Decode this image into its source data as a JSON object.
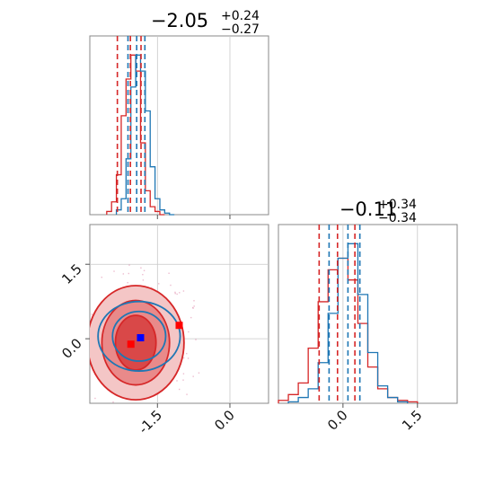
{
  "chart_data": {
    "type": "corner",
    "series": [
      {
        "name": "",
        "color": "#d62728"
      },
      {
        "name": "",
        "color": "#1f77b4"
      }
    ],
    "panels": {
      "hist_p1": {
        "type": "histogram",
        "title": {
          "value": "−2.05",
          "sup": "+0.24",
          "sub": "−0.27"
        },
        "xlim": [
          -2.9,
          0.8
        ],
        "grid_x": [
          -1.5,
          0.0
        ],
        "quantiles": {
          "red": [
            -2.33,
            -2.06,
            -1.84
          ],
          "blue": [
            -2.11,
            -1.93,
            -1.76
          ]
        },
        "red_centers": [
          -2.5,
          -2.4,
          -2.3,
          -2.2,
          -2.1,
          -2.0,
          -1.9,
          -1.8,
          -1.7,
          -1.6,
          -1.5,
          -1.4
        ],
        "red_counts": [
          2,
          8,
          25,
          62,
          85,
          100,
          90,
          45,
          15,
          5,
          2,
          0
        ],
        "blue_centers": [
          -2.3,
          -2.2,
          -2.1,
          -2.0,
          -1.9,
          -1.8,
          -1.7,
          -1.6,
          -1.5,
          -1.4,
          -1.3,
          -1.2
        ],
        "blue_counts": [
          3,
          10,
          35,
          80,
          100,
          90,
          65,
          30,
          10,
          3,
          1,
          0
        ]
      },
      "hist_p2": {
        "type": "histogram",
        "title": {
          "value": "−0.11",
          "sup": "+0.34",
          "sub": "−0.34"
        },
        "xlim": [
          -1.3,
          2.3
        ],
        "grid_x": [
          0.0,
          1.5
        ],
        "tick_labels": [
          "0.0",
          "1.5"
        ],
        "quantiles": {
          "red": [
            -0.48,
            -0.11,
            0.24
          ],
          "blue": [
            -0.28,
            0.1,
            0.34
          ]
        },
        "red_centers": [
          -1.2,
          -1.0,
          -0.8,
          -0.6,
          -0.4,
          -0.2,
          0.0,
          0.2,
          0.4,
          0.6,
          0.8,
          1.0,
          1.2,
          1.4
        ],
        "red_counts": [
          2,
          6,
          14,
          38,
          70,
          92,
          100,
          85,
          55,
          25,
          10,
          4,
          2,
          1
        ],
        "blue_centers": [
          -1.0,
          -0.8,
          -0.6,
          -0.4,
          -0.2,
          0.0,
          0.2,
          0.4,
          0.6,
          0.8,
          1.0,
          1.2
        ],
        "blue_counts": [
          1,
          4,
          10,
          28,
          62,
          100,
          110,
          75,
          35,
          12,
          4,
          1
        ]
      },
      "scatter": {
        "type": "contour",
        "xlim": [
          -2.9,
          0.8
        ],
        "ylim": [
          -1.3,
          2.3
        ],
        "grid_x": [
          -1.5,
          0.0
        ],
        "grid_y": [
          0.0,
          1.5
        ],
        "x_tick_labels": [
          "-1.5",
          "0.0"
        ],
        "y_tick_labels": [
          "0.0",
          "1.5"
        ],
        "red_levels": [
          {
            "cx": -1.95,
            "cy": -0.08,
            "rx": 1.0,
            "ry": 1.15
          },
          {
            "cx": -1.95,
            "cy": -0.08,
            "rx": 0.7,
            "ry": 0.85
          },
          {
            "cx": -1.95,
            "cy": -0.08,
            "rx": 0.42,
            "ry": 0.55
          }
        ],
        "blue_levels": [
          {
            "cx": -1.88,
            "cy": 0.05,
            "rx": 0.85,
            "ry": 0.7
          },
          {
            "cx": -1.88,
            "cy": 0.05,
            "rx": 0.55,
            "ry": 0.5
          }
        ],
        "markers": [
          {
            "color": "#ff0000",
            "x": -2.05,
            "y": -0.11
          },
          {
            "color": "#0000ff",
            "x": -1.85,
            "y": 0.02
          },
          {
            "color": "#ff0000",
            "x": -1.05,
            "y": 0.27
          }
        ]
      }
    }
  }
}
